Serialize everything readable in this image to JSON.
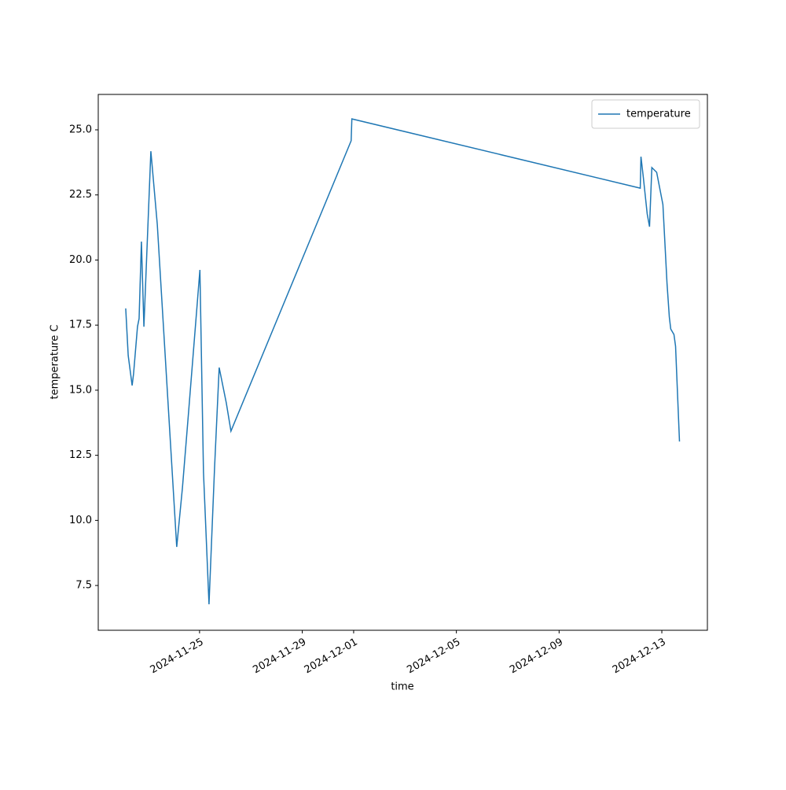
{
  "chart_data": {
    "type": "line",
    "x_label": "time",
    "y_label": "temperature C",
    "x": [
      "2024-11-22T03:00",
      "2024-11-22T05:20",
      "2024-11-22T09:00",
      "2024-11-22T10:20",
      "2024-11-22T14:00",
      "2024-11-22T15:30",
      "2024-11-22T17:40",
      "2024-11-22T20:00",
      "2024-11-23T02:30",
      "2024-11-23T08:30",
      "2024-11-24T02:40",
      "2024-11-24T08:00",
      "2024-11-24T13:40",
      "2024-11-25T00:20",
      "2024-11-25T03:40",
      "2024-11-25T08:50",
      "2024-11-25T14:00",
      "2024-11-25T18:20",
      "2024-11-26T01:00",
      "2024-11-26T05:20",
      "2024-11-30T21:40",
      "2024-11-30T22:20",
      "2024-12-12T03:50",
      "2024-12-12T04:30",
      "2024-12-12T06:40",
      "2024-12-12T10:20",
      "2024-12-12T12:30",
      "2024-12-12T14:40",
      "2024-12-12T19:10",
      "2024-12-13T01:00",
      "2024-12-13T04:50",
      "2024-12-13T07:00",
      "2024-12-13T08:20",
      "2024-12-13T11:20",
      "2024-12-13T12:50",
      "2024-12-13T16:30"
    ],
    "series": [
      {
        "name": "temperature",
        "color": "#1f77b4",
        "values": [
          18.14,
          16.33,
          15.18,
          15.63,
          17.44,
          17.75,
          20.71,
          17.44,
          24.18,
          21.37,
          8.98,
          11.25,
          14.12,
          19.62,
          11.85,
          6.78,
          12.0,
          15.87,
          14.51,
          13.43,
          24.58,
          25.42,
          22.76,
          23.97,
          23.19,
          21.77,
          21.28,
          23.55,
          23.37,
          22.13,
          19.11,
          17.81,
          17.35,
          17.14,
          16.69,
          13.03
        ]
      }
    ],
    "xlim": [
      "2024-11-21T01:20",
      "2024-12-14T18:35"
    ],
    "xticks": [
      "2024-11-25",
      "2024-11-29",
      "2024-12-01",
      "2024-12-05",
      "2024-12-09",
      "2024-12-13"
    ],
    "ylim": [
      5.78,
      26.36
    ],
    "yticks": [
      {
        "value": 7.5,
        "label": "7.5"
      },
      {
        "value": 10,
        "label": "10.0"
      },
      {
        "value": 12.5,
        "label": "12.5"
      },
      {
        "value": 15,
        "label": "15.0"
      },
      {
        "value": 17.5,
        "label": "17.5"
      },
      {
        "value": 20,
        "label": "20.0"
      },
      {
        "value": 22.5,
        "label": "22.5"
      },
      {
        "value": 25,
        "label": "25.0"
      }
    ],
    "legend": "upper right",
    "grid": false
  }
}
